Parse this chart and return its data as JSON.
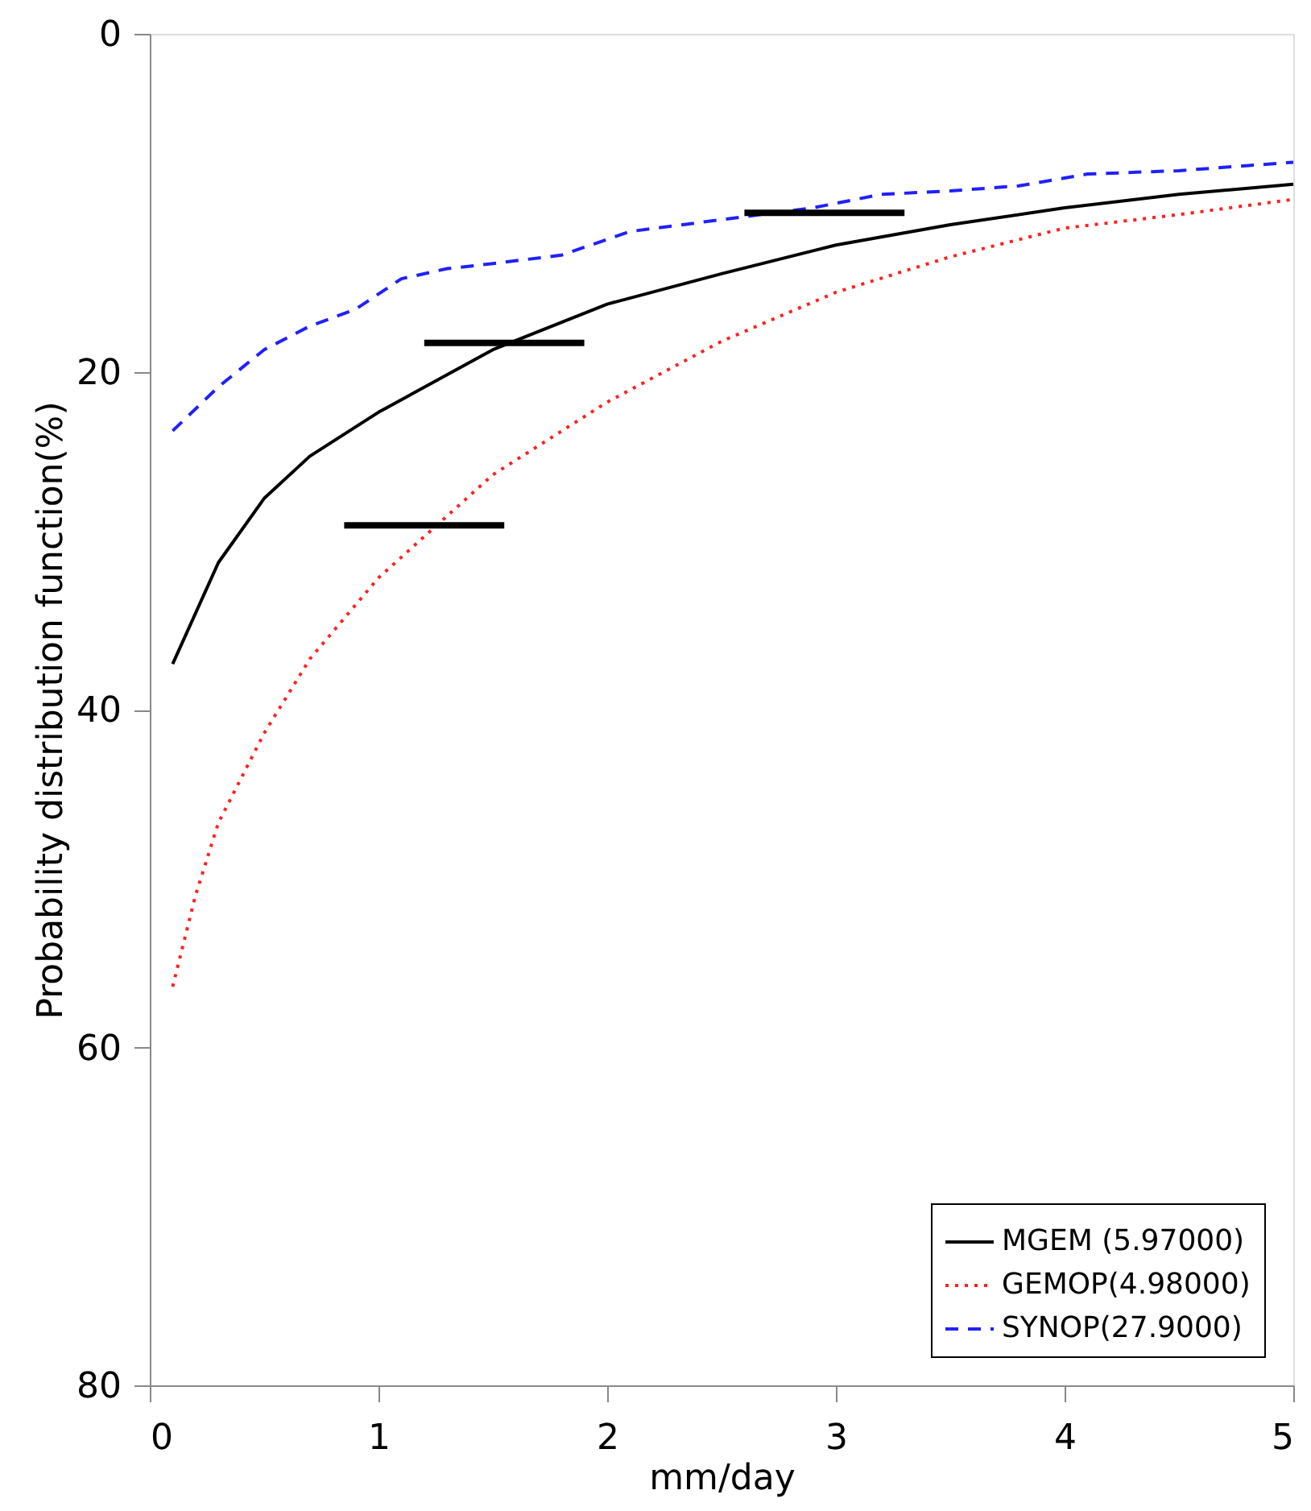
{
  "chart_data": {
    "type": "line",
    "xlabel": "mm/day",
    "ylabel": "Probability distribution function(%)",
    "xlim": [
      0,
      5
    ],
    "xticks": [
      0,
      1,
      2,
      3,
      4,
      5
    ],
    "ylim": [
      80,
      0
    ],
    "yticks": [
      0,
      20,
      40,
      60,
      80
    ],
    "grid": false,
    "legend": "bottom right",
    "marker": "none",
    "series": [
      {
        "name": "MGEM (5.97000)",
        "color": "#000000",
        "line_style": "solid",
        "x": [
          0.1,
          0.3,
          0.5,
          0.7,
          1.0,
          1.5,
          2.0,
          2.5,
          3.0,
          3.5,
          4.0,
          4.5,
          5.0
        ],
        "values": [
          37.3,
          31.3,
          27.5,
          25.0,
          22.4,
          18.7,
          16.0,
          14.2,
          12.5,
          11.3,
          10.3,
          9.5,
          8.9
        ]
      },
      {
        "name": "GEMOP(4.98000)",
        "color": "#ff2020",
        "line_style": "dotted",
        "x": [
          0.1,
          0.2,
          0.3,
          0.5,
          0.7,
          1.0,
          1.5,
          2.0,
          2.5,
          3.0,
          3.5,
          4.0,
          4.5,
          5.0
        ],
        "values": [
          56.4,
          51.0,
          46.7,
          41.4,
          37.0,
          32.2,
          26.1,
          21.8,
          18.2,
          15.3,
          13.2,
          11.5,
          10.7,
          9.8
        ]
      },
      {
        "name": "SYNOP(27.9000)",
        "color": "#2020ff",
        "line_style": "dashed",
        "x": [
          0.1,
          0.3,
          0.5,
          0.7,
          0.9,
          1.1,
          1.3,
          1.5,
          1.8,
          2.1,
          2.5,
          2.9,
          3.2,
          3.5,
          3.8,
          4.1,
          4.5,
          5.0
        ],
        "values": [
          23.5,
          20.9,
          18.7,
          17.3,
          16.3,
          14.5,
          13.9,
          13.6,
          13.1,
          11.7,
          11.0,
          10.3,
          9.5,
          9.3,
          9.0,
          8.3,
          8.1,
          7.6
        ]
      },
      {
        "type": "line",
        "color": "#000000",
        "line_style": "solid",
        "x": [
          0.85,
          1.55
        ],
        "values": [
          29.1,
          29.1
        ]
      },
      {
        "type": "line",
        "color": "#000000",
        "line_style": "solid",
        "x": [
          1.2,
          1.9
        ],
        "values": [
          18.3,
          18.3
        ]
      },
      {
        "type": "line",
        "color": "#000000",
        "line_style": "solid",
        "x": [
          2.6,
          3.3
        ],
        "values": [
          10.6,
          10.6
        ]
      }
    ]
  }
}
